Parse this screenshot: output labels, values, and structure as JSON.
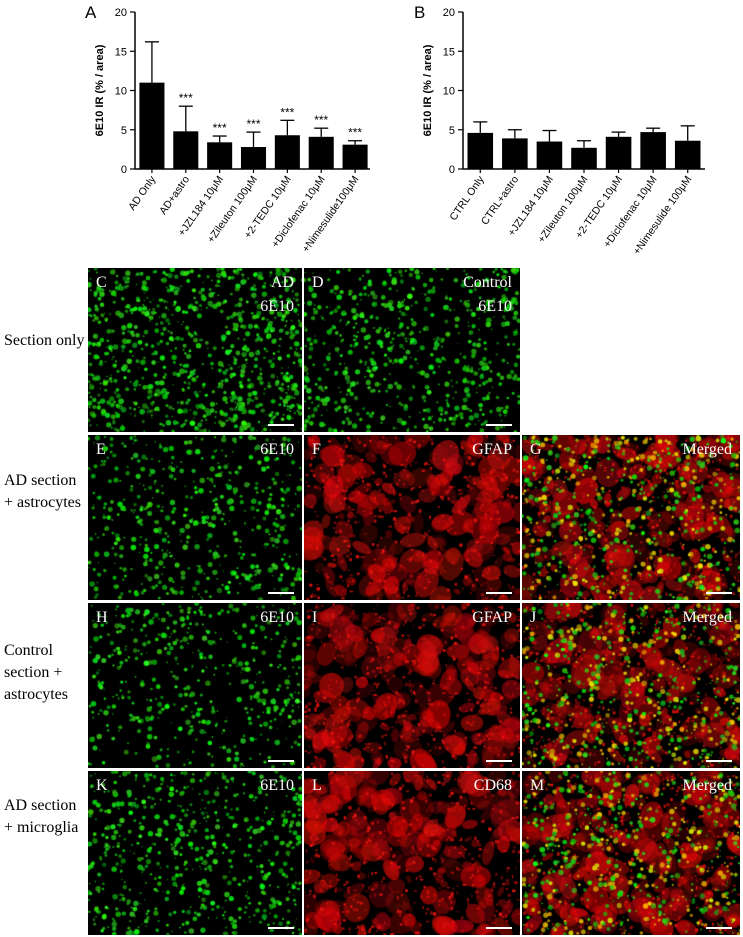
{
  "chart_data": [
    {
      "panel": "A",
      "type": "bar",
      "ylabel": "6E10 IR (% / area)",
      "ylim": [
        0,
        20
      ],
      "yticks": [
        0,
        5,
        10,
        15,
        20
      ],
      "categories": [
        "AD Only",
        "AD+astro",
        "+JZL184 10μM",
        "+Zileuton 100μM",
        "+2-TEDC 10μM",
        "+Diclofenac 10μM",
        "+Nimesulide100μM"
      ],
      "values": [
        11.0,
        4.8,
        3.4,
        2.8,
        4.3,
        4.1,
        3.1
      ],
      "errors": [
        5.2,
        3.2,
        0.8,
        1.9,
        1.9,
        1.1,
        0.5
      ],
      "significance": [
        "",
        "***",
        "***",
        "***",
        "***",
        "***",
        "***"
      ]
    },
    {
      "panel": "B",
      "type": "bar",
      "ylabel": "6E10 IR (% / area)",
      "ylim": [
        0,
        20
      ],
      "yticks": [
        0,
        5,
        10,
        15,
        20
      ],
      "categories": [
        "CTRL Only",
        "CTRL+astro",
        "+JZL184 10μM",
        "+Zileuton 100μM",
        "+2-TEDC 10μM",
        "+Diclofenac 10μM",
        "+Nimesulide 100μM"
      ],
      "values": [
        4.6,
        3.9,
        3.5,
        2.7,
        4.1,
        4.7,
        3.6
      ],
      "errors": [
        1.4,
        1.1,
        1.4,
        0.9,
        0.6,
        0.5,
        1.9
      ],
      "significance": [
        "",
        "",
        "",
        "",
        "",
        "",
        ""
      ]
    }
  ],
  "rows": [
    {
      "label": "Section only"
    },
    {
      "label": "AD section + astrocytes"
    },
    {
      "label": "Control section + astrocytes"
    },
    {
      "label": "AD section + microglia"
    }
  ],
  "panels": [
    {
      "letter": "C",
      "title": "AD",
      "subtitle": "6E10",
      "color": "green"
    },
    {
      "letter": "D",
      "title": "Control",
      "subtitle": "6E10",
      "color": "green"
    },
    {
      "letter": "E",
      "title": "6E10",
      "color": "green"
    },
    {
      "letter": "F",
      "title": "GFAP",
      "color": "red"
    },
    {
      "letter": "G",
      "title": "Merged",
      "color": "merged"
    },
    {
      "letter": "H",
      "title": "6E10",
      "color": "green"
    },
    {
      "letter": "I",
      "title": "GFAP",
      "color": "red"
    },
    {
      "letter": "J",
      "title": "Merged",
      "color": "merged"
    },
    {
      "letter": "K",
      "title": "6E10",
      "color": "green"
    },
    {
      "letter": "L",
      "title": "CD68",
      "color": "red"
    },
    {
      "letter": "M",
      "title": "Merged",
      "color": "merged"
    }
  ]
}
